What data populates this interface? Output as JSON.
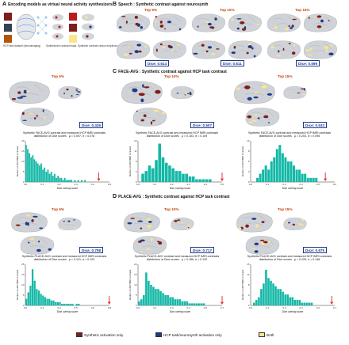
{
  "panels": {
    "A": {
      "letter": "A",
      "title": "Encoding models as virtual neural activity synthesizers",
      "captions": [
        "HCP task dataset (neuroimaging)",
        "Synthesized contrast maps",
        "Synthetic contrast versus empirical contrast"
      ]
    },
    "B": {
      "letter": "B",
      "title": "Speech : Synthetic contrast against neurosynth",
      "thresholds": [
        "Top 5%",
        "Top 10%",
        "Top 15%"
      ],
      "dice": [
        "Dice: 0.614",
        "Dice: 0.611",
        "Dice: 0.599"
      ]
    },
    "C": {
      "letter": "C",
      "title": "FACE-AVG : Synthetic contrast against HCP task contrast",
      "thresholds": [
        "Top 5%",
        "Top 10%",
        "Top 15%"
      ],
      "dice": [
        "Dice: 0.436",
        "Dice: 0.507",
        "Dice: 0.533"
      ],
      "hist_titles": [
        "Synthetic FACE-AVG contrast and measured HCP fMRI contrasts\ndistribution of Dice scores   μ = 0.097, σ = 0.078",
        "Synthetic FACE-AVG contrast and measured HCP fMRI contrasts\ndistribution of Dice scores   μ = 0.153, σ = 0.109",
        "Synthetic FACE-AVG contrast and measured HCP fMRI contrasts\ndistribution of Dice scores   μ = 0.203, σ = 0.096"
      ]
    },
    "D": {
      "letter": "D",
      "title": "PLACE-AVG : Synthetic contrast against HCP task contrast",
      "thresholds": [
        "Top 5%",
        "Top 10%",
        "Top 15%"
      ],
      "dice": [
        "Dice: 0.798",
        "Dice: 0.717",
        "Dice: 0.675"
      ],
      "hist_titles": [
        "Synthetic PLACE-AVG contrast and measured HCP fMRI contrasts\ndistribution of Dice scores   μ = 0.121, σ = 0.103",
        "Synthetic PLACE-AVG contrast and measured HCP fMRI contrasts\ndistribution of Dice scores   μ = 0.186, σ = 0.132",
        "Synthetic PLACE-AVG contrast and measured HCP fMRI contrasts\ndistribution of Dice scores   μ = 0.225, σ = 0.148"
      ]
    }
  },
  "histograms": {
    "xlabel": "Dice overlap score",
    "ylabel": "Number of HCP fMRI contrasts",
    "bar_color": "#14b8a6",
    "marker_color": "#dc2626"
  },
  "legend": {
    "items": [
      {
        "label": "Synthetic activation only",
        "color": "#7f1d1d"
      },
      {
        "label": "HCP task/neurosynth activation only",
        "color": "#1e3a8a"
      },
      {
        "label": "Both",
        "color": "#fde68a"
      }
    ]
  },
  "chart_data": [
    {
      "type": "bar",
      "title": "Synthetic FACE-AVG contrast and measured HCP fMRI contrasts distribution of Dice scores",
      "xlabel": "Dice overlap score",
      "ylabel": "Number of HCP fMRI contrasts",
      "xlim": [
        0.0,
        0.5
      ],
      "ylim": [
        0,
        20
      ],
      "x": [
        0.0,
        0.01,
        0.02,
        0.03,
        0.04,
        0.05,
        0.06,
        0.07,
        0.08,
        0.09,
        0.1,
        0.11,
        0.12,
        0.13,
        0.14,
        0.15,
        0.16,
        0.17,
        0.18,
        0.19,
        0.2,
        0.21,
        0.22,
        0.23,
        0.24,
        0.25,
        0.26,
        0.27,
        0.28,
        0.29,
        0.3,
        0.31,
        0.32,
        0.33,
        0.34,
        0.35
      ],
      "values": [
        18,
        16,
        14,
        12,
        13,
        11,
        10,
        9,
        8,
        9,
        6,
        7,
        5,
        6,
        4,
        5,
        3,
        4,
        2,
        3,
        2,
        2,
        1,
        2,
        1,
        1,
        1,
        1,
        0,
        1,
        0,
        1,
        0,
        1,
        0,
        1
      ],
      "marker": 0.436
    },
    {
      "type": "bar",
      "title": "Synthetic FACE-AVG contrast and measured HCP fMRI contrasts distribution of Dice scores",
      "xlabel": "Dice overlap score",
      "ylabel": "Number of HCP fMRI contrasts",
      "xlim": [
        0.0,
        0.5
      ],
      "ylim": [
        0,
        15
      ],
      "x": [
        0.02,
        0.04,
        0.06,
        0.08,
        0.1,
        0.12,
        0.14,
        0.16,
        0.18,
        0.2,
        0.22,
        0.24,
        0.26,
        0.28,
        0.3,
        0.32,
        0.34,
        0.36,
        0.38,
        0.4,
        0.42
      ],
      "values": [
        3,
        4,
        6,
        5,
        8,
        14,
        9,
        7,
        6,
        5,
        4,
        4,
        3,
        3,
        2,
        2,
        1,
        1,
        1,
        1,
        1
      ],
      "marker": 0.507
    },
    {
      "type": "bar",
      "title": "Synthetic FACE-AVG contrast and measured HCP fMRI contrasts distribution of Dice scores",
      "xlabel": "Dice overlap score",
      "ylabel": "Number of HCP fMRI contrasts",
      "xlim": [
        0.0,
        0.6
      ],
      "ylim": [
        0,
        10
      ],
      "x": [
        0.04,
        0.06,
        0.08,
        0.1,
        0.12,
        0.14,
        0.16,
        0.18,
        0.2,
        0.22,
        0.24,
        0.26,
        0.28,
        0.3,
        0.32,
        0.34,
        0.36,
        0.38,
        0.4,
        0.42,
        0.44,
        0.46
      ],
      "values": [
        1,
        2,
        3,
        4,
        3,
        5,
        6,
        8,
        9,
        7,
        6,
        5,
        5,
        4,
        3,
        3,
        2,
        2,
        1,
        1,
        1,
        1
      ],
      "marker": 0.533
    },
    {
      "type": "bar",
      "title": "Synthetic PLACE-AVG contrast and measured HCP fMRI contrasts distribution of Dice scores",
      "xlabel": "Dice overlap score",
      "ylabel": "Number of HCP fMRI contrasts",
      "xlim": [
        0.0,
        0.8
      ],
      "ylim": [
        0,
        25
      ],
      "x": [
        0.0,
        0.02,
        0.04,
        0.06,
        0.08,
        0.1,
        0.12,
        0.14,
        0.16,
        0.18,
        0.2,
        0.22,
        0.24,
        0.26,
        0.28,
        0.3,
        0.32,
        0.34,
        0.36,
        0.38,
        0.4,
        0.42,
        0.44,
        0.46,
        0.48,
        0.5
      ],
      "values": [
        4,
        8,
        12,
        22,
        15,
        10,
        9,
        7,
        6,
        5,
        4,
        4,
        3,
        3,
        2,
        2,
        2,
        1,
        1,
        1,
        1,
        1,
        1,
        0,
        1,
        1
      ],
      "marker": 0.798
    },
    {
      "type": "bar",
      "title": "Synthetic PLACE-AVG contrast and measured HCP fMRI contrasts distribution of Dice scores",
      "xlabel": "Dice overlap score",
      "ylabel": "Number of HCP fMRI contrasts",
      "xlim": [
        0.0,
        0.7
      ],
      "ylim": [
        0,
        20
      ],
      "x": [
        0.0,
        0.02,
        0.04,
        0.06,
        0.08,
        0.1,
        0.12,
        0.14,
        0.16,
        0.18,
        0.2,
        0.22,
        0.24,
        0.26,
        0.28,
        0.3,
        0.32,
        0.34,
        0.36,
        0.38,
        0.4,
        0.42,
        0.44,
        0.46,
        0.48,
        0.5,
        0.52,
        0.54
      ],
      "values": [
        2,
        3,
        5,
        16,
        12,
        10,
        9,
        8,
        8,
        7,
        6,
        5,
        5,
        4,
        4,
        3,
        3,
        3,
        2,
        2,
        2,
        1,
        1,
        1,
        1,
        1,
        1,
        1
      ],
      "marker": 0.717
    },
    {
      "type": "bar",
      "title": "Synthetic PLACE-AVG contrast and measured HCP fMRI contrasts distribution of Dice scores",
      "xlabel": "Dice overlap score",
      "ylabel": "Number of HCP fMRI contrasts",
      "xlim": [
        0.0,
        0.7
      ],
      "ylim": [
        0,
        15
      ],
      "x": [
        0.02,
        0.04,
        0.06,
        0.08,
        0.1,
        0.12,
        0.14,
        0.16,
        0.18,
        0.2,
        0.22,
        0.24,
        0.26,
        0.28,
        0.3,
        0.32,
        0.34,
        0.36,
        0.38,
        0.4,
        0.42,
        0.44,
        0.46,
        0.48,
        0.5
      ],
      "values": [
        1,
        2,
        3,
        6,
        8,
        13,
        10,
        9,
        8,
        7,
        6,
        6,
        5,
        4,
        4,
        3,
        3,
        2,
        2,
        2,
        1,
        1,
        1,
        1,
        1
      ],
      "marker": 0.675
    }
  ]
}
